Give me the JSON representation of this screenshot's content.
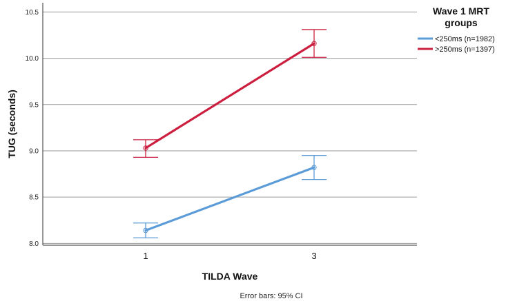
{
  "chart_data": {
    "type": "line",
    "title": "",
    "xlabel": "TILDA Wave",
    "ylabel": "TUG (seconds)",
    "categories": [
      "1",
      "3"
    ],
    "ylim": [
      7.98,
      10.6
    ],
    "yticks": [
      8.0,
      8.5,
      9.0,
      9.5,
      10.0,
      10.5
    ],
    "ytick_labels": [
      "8.0",
      "8.5",
      "9.0",
      "9.5",
      "10.0",
      "10.5"
    ],
    "grid": "horizontal",
    "legend": {
      "title_line1": "Wave 1 MRT",
      "title_line2": "groups",
      "placement": "top-right, outside plot"
    },
    "series": [
      {
        "name": "<250ms (n=1982)",
        "color": "#5a9bd8",
        "values": [
          8.14,
          8.82
        ],
        "ci_lower": [
          8.06,
          8.69
        ],
        "ci_upper": [
          8.22,
          8.95
        ]
      },
      {
        "name": ">250ms (n=1397)",
        "color": "#cc1f3f",
        "values": [
          9.03,
          10.16
        ],
        "ci_lower": [
          8.93,
          10.01
        ],
        "ci_upper": [
          9.12,
          10.31
        ]
      }
    ],
    "footnote": "Error bars: 95% CI"
  }
}
